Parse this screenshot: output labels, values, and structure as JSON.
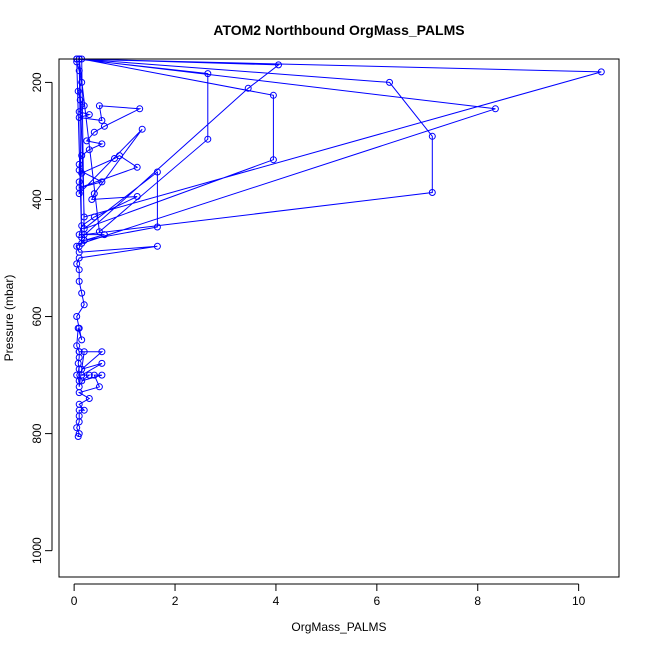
{
  "chart_data": {
    "type": "line",
    "title": "ATOM2 Northbound OrgMass_PALMS",
    "xlabel": "OrgMass_PALMS",
    "ylabel": "Pressure (mbar)",
    "xlim": [
      -0.3,
      10.8
    ],
    "ylim": [
      1045,
      160
    ],
    "y_reversed": true,
    "grid": false,
    "legend": "none",
    "line_color": "#0000ff",
    "x_ticks": [
      0,
      2,
      4,
      6,
      8,
      10
    ],
    "y_ticks": [
      200,
      400,
      600,
      800,
      1000
    ],
    "series": [
      {
        "x": [
          0.05,
          0.1,
          0.15,
          0.08,
          0.12,
          0.2,
          0.1,
          0.3,
          0.1,
          0.55,
          0.5,
          1.3,
          0.6,
          0.4,
          0.25,
          0.55,
          0.3,
          0.15,
          0.1,
          0.1,
          0.55,
          0.1,
          1.25,
          0.9,
          0.8,
          0.15,
          0.1,
          0.1,
          1.35,
          0.4,
          0.35,
          1.25,
          0.4,
          0.15,
          0.1,
          0.6,
          0.2,
          0.05,
          0.1,
          1.65,
          0.1,
          0.05,
          0.1,
          0.1,
          0.15,
          0.2,
          0.05,
          0.1,
          0.15,
          0.08,
          0.05,
          0.1,
          0.1,
          0.08,
          0.1,
          0.05,
          0.1,
          0.1,
          0.2,
          0.1,
          0.55,
          0.15,
          0.55,
          0.15,
          0.3,
          0.15,
          0.55,
          0.4,
          0.5,
          0.1,
          0.3,
          0.1,
          0.2,
          0.1,
          0.1,
          0.1,
          0.05,
          0.1,
          0.08
        ],
        "y": [
          165,
          180,
          200,
          215,
          230,
          240,
          250,
          255,
          260,
          265,
          240,
          245,
          275,
          285,
          300,
          305,
          315,
          325,
          340,
          350,
          370,
          380,
          345,
          325,
          330,
          355,
          370,
          390,
          280,
          390,
          400,
          395,
          430,
          445,
          460,
          460,
          470,
          480,
          490,
          480,
          500,
          510,
          520,
          540,
          560,
          580,
          600,
          620,
          640,
          620,
          650,
          660,
          670,
          680,
          690,
          700,
          710,
          720,
          660,
          660,
          660,
          690,
          680,
          700,
          700,
          710,
          700,
          700,
          720,
          730,
          740,
          750,
          760,
          760,
          770,
          780,
          790,
          800,
          805
        ]
      },
      {
        "x": [
          0.05,
          2.65,
          2.65,
          0.5,
          0.1,
          4.05,
          3.45,
          0.15,
          0.05,
          10.45,
          0.2,
          0.1,
          8.35,
          0.15,
          0.1,
          6.25,
          7.1,
          7.1,
          0.2,
          0.15,
          3.95,
          3.95,
          0.2,
          1.65,
          1.65,
          0.2,
          0.1
        ],
        "y": [
          160,
          185,
          297,
          455,
          160,
          170,
          210,
          465,
          160,
          182,
          430,
          160,
          245,
          475,
          160,
          200,
          292,
          388,
          460,
          160,
          222,
          332,
          450,
          353,
          447,
          470,
          480
        ]
      }
    ]
  }
}
